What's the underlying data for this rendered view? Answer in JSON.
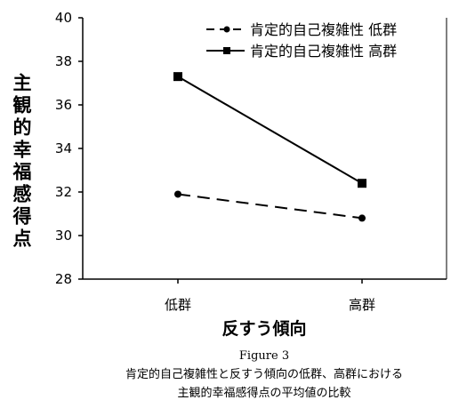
{
  "chart_data": {
    "type": "line",
    "categories": [
      "低群",
      "高群"
    ],
    "series": [
      {
        "name": "肯定的自己複雑性 低群",
        "values": [
          31.9,
          30.8
        ],
        "line_style": "dashed",
        "marker": "circle",
        "color": "#000000"
      },
      {
        "name": "肯定的自己複雑性 高群",
        "values": [
          37.3,
          32.4
        ],
        "line_style": "solid",
        "marker": "square",
        "color": "#000000"
      }
    ],
    "ylim": [
      28,
      40
    ],
    "yticks": [
      "28",
      "30",
      "32",
      "34",
      "36",
      "38",
      "40"
    ],
    "ylabel": "主観的幸福感得点",
    "xlabel": "反すう傾向",
    "legend_position": "top-right",
    "grid": false
  },
  "caption": {
    "figure_label": "Figure 3",
    "line1": "肯定的自己複雑性と反すう傾向の低群、高群における",
    "line2": "主観的幸福感得点の平均値の比較"
  }
}
